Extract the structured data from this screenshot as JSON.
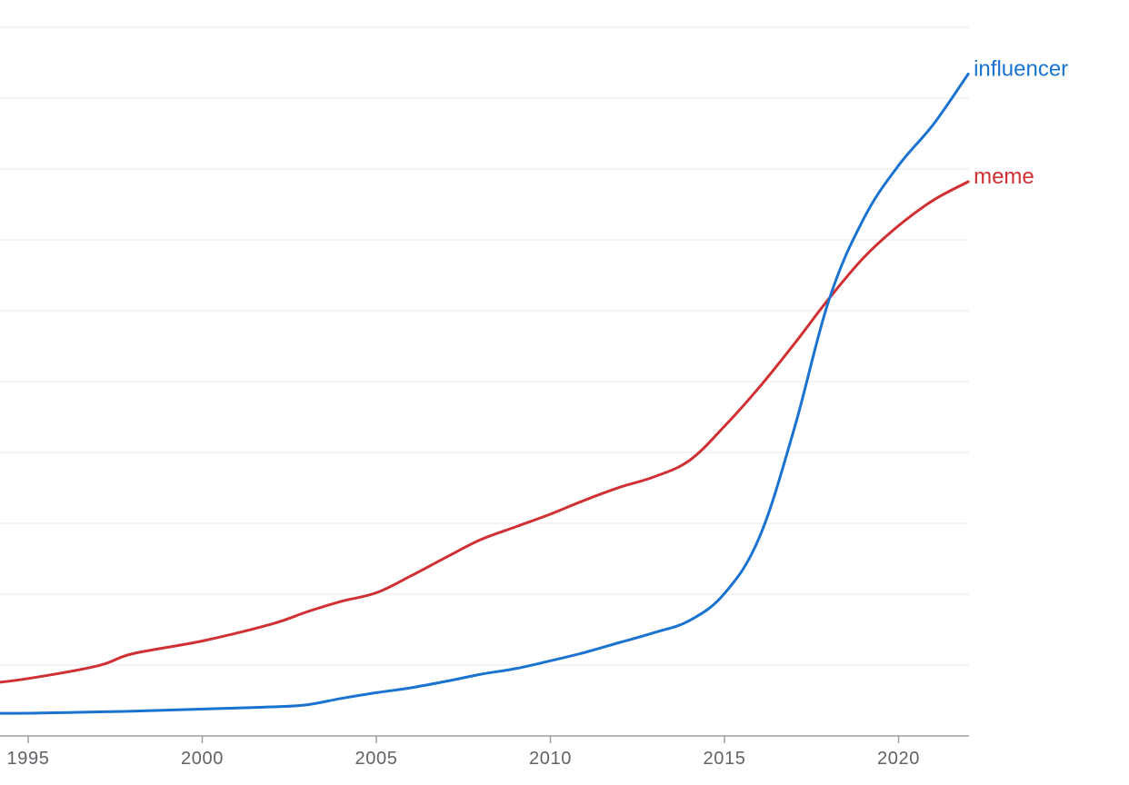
{
  "chart_data": {
    "type": "line",
    "title": "",
    "xlabel": "",
    "ylabel": "",
    "xlim": [
      1993.5,
      2022
    ],
    "ylim": [
      0,
      100
    ],
    "grid": true,
    "legend": "inline-right",
    "x_ticks": [
      "1995",
      "2000",
      "2005",
      "2010",
      "2015",
      "2020"
    ],
    "x": [
      1993.5,
      1995,
      1997,
      1998,
      2000,
      2002,
      2003,
      2004,
      2005,
      2006,
      2007,
      2008,
      2009,
      2010,
      2011,
      2012,
      2013,
      2014,
      2015,
      2016,
      2017,
      2018,
      2019,
      2020,
      2021,
      2022
    ],
    "series": [
      {
        "name": "influencer",
        "color": "#1a73d0",
        "values": [
          3.2,
          3.2,
          3.4,
          3.5,
          3.8,
          4.1,
          4.4,
          5.3,
          6.1,
          6.8,
          7.7,
          8.7,
          9.5,
          10.6,
          11.8,
          13.2,
          14.6,
          16.3,
          20.1,
          28.0,
          43.3,
          61.5,
          73.0,
          80.5,
          86.3,
          93.4
        ]
      },
      {
        "name": "meme",
        "color": "#d03033",
        "values": [
          7.2,
          8.1,
          9.9,
          11.6,
          13.4,
          15.8,
          17.5,
          19.0,
          20.2,
          22.6,
          25.2,
          27.7,
          29.5,
          31.3,
          33.3,
          35.1,
          36.6,
          38.9,
          43.7,
          49.2,
          55.3,
          61.7,
          67.5,
          72.0,
          75.6,
          78.2
        ]
      }
    ]
  }
}
